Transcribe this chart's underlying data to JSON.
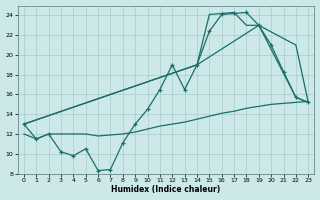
{
  "xlabel": "Humidex (Indice chaleur)",
  "background_color": "#cce8e8",
  "grid_color": "#aacccc",
  "line_color": "#1a6e6a",
  "xlim": [
    -0.5,
    23.5
  ],
  "ylim": [
    8,
    25
  ],
  "xticks": [
    0,
    1,
    2,
    3,
    4,
    5,
    6,
    7,
    8,
    9,
    10,
    11,
    12,
    13,
    14,
    15,
    16,
    17,
    18,
    19,
    20,
    21,
    22,
    23
  ],
  "yticks": [
    8,
    10,
    12,
    14,
    16,
    18,
    20,
    22,
    24
  ],
  "line1_x": [
    0,
    1,
    2,
    3,
    4,
    5,
    6,
    7,
    8,
    9,
    10,
    11,
    12,
    13,
    14,
    15,
    16,
    17,
    18,
    19,
    20,
    21,
    22,
    23
  ],
  "line1_y": [
    13,
    11.5,
    12,
    10.2,
    9.8,
    10.5,
    8.3,
    8.4,
    11.1,
    13,
    14.5,
    16.5,
    19,
    16.5,
    19,
    22.4,
    24.1,
    24.2,
    24.3,
    23,
    21,
    18.3,
    15.7,
    15.2
  ],
  "line2_x": [
    0,
    14,
    15,
    16,
    17,
    18,
    19,
    22,
    23
  ],
  "line2_y": [
    13,
    19,
    24.1,
    24.2,
    24.3,
    23,
    23,
    15.7,
    15.2
  ],
  "line3_x": [
    0,
    14,
    19,
    22,
    23
  ],
  "line3_y": [
    13,
    19,
    23,
    21,
    15.2
  ],
  "line4_x": [
    0,
    1,
    2,
    3,
    4,
    5,
    6,
    7,
    8,
    9,
    10,
    11,
    12,
    13,
    14,
    15,
    16,
    17,
    18,
    19,
    20,
    21,
    22,
    23
  ],
  "line4_y": [
    12,
    11.5,
    12,
    12,
    12,
    12,
    11.8,
    11.9,
    12,
    12.2,
    12.5,
    12.8,
    13,
    13.2,
    13.5,
    13.8,
    14.1,
    14.3,
    14.6,
    14.8,
    15,
    15.1,
    15.2,
    15.3
  ]
}
